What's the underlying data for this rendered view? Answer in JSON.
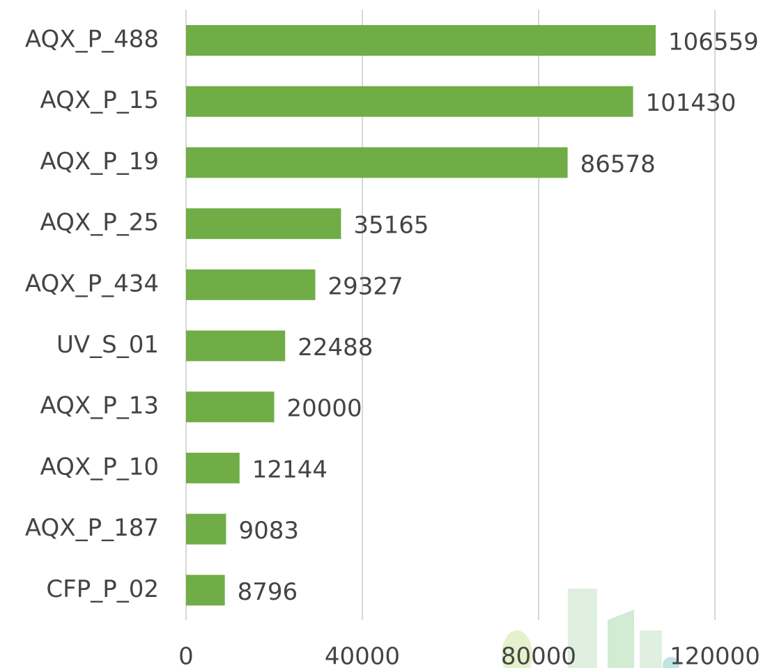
{
  "chart_data": {
    "type": "barh",
    "categories": [
      "AQX_P_488",
      "AQX_P_15",
      "AQX_P_19",
      "AQX_P_25",
      "AQX_P_434",
      "UV_S_01",
      "AQX_P_13",
      "AQX_P_10",
      "AQX_P_187",
      "CFP_P_02"
    ],
    "values": [
      106559,
      101430,
      86578,
      35165,
      29327,
      22488,
      20000,
      12144,
      9083,
      8796
    ],
    "color": "#70ad47",
    "xlim": [
      0,
      120000
    ],
    "xticks": [
      0,
      40000,
      80000,
      120000
    ],
    "grid": true
  }
}
